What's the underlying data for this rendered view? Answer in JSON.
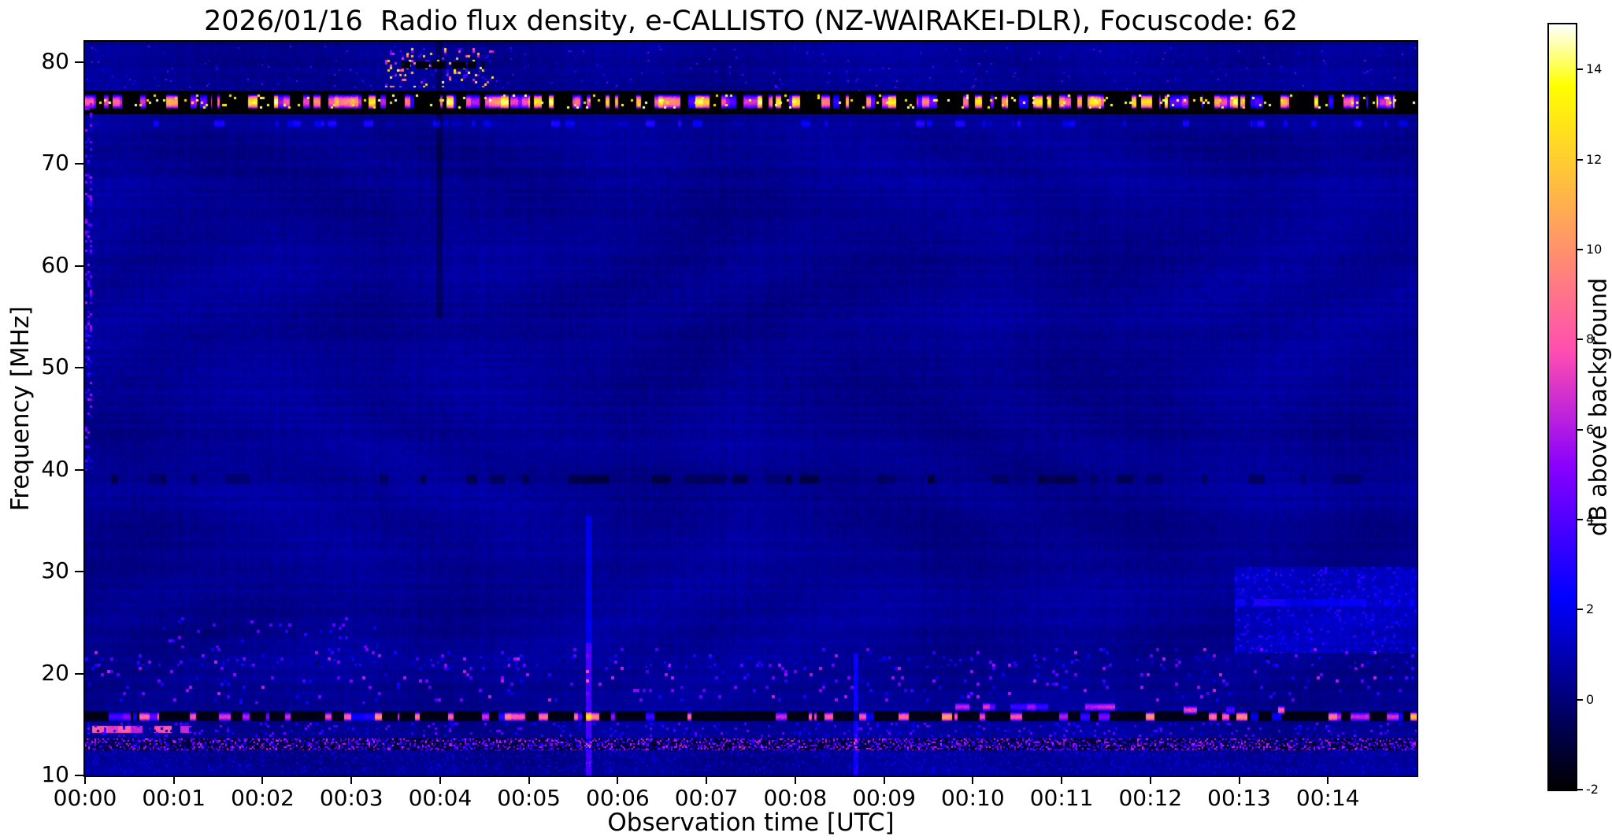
{
  "figure": {
    "title": "2026/01/16  Radio flux density, e-CALLISTO (NZ-WAIRAKEI-DLR), Focuscode: 62"
  },
  "chart_data": {
    "type": "heatmap",
    "title": "2026/01/16  Radio flux density, e-CALLISTO (NZ-WAIRAKEI-DLR), Focuscode: 62",
    "xlabel": "Observation time [UTC]",
    "ylabel": "Frequency [MHz]",
    "grid": false,
    "x_tick_labels": [
      "00:00",
      "00:01",
      "00:02",
      "00:03",
      "00:04",
      "00:05",
      "00:06",
      "00:07",
      "00:08",
      "00:09",
      "00:10",
      "00:11",
      "00:12",
      "00:13",
      "00:14"
    ],
    "x_tick_minutes": [
      0,
      1,
      2,
      3,
      4,
      5,
      6,
      7,
      8,
      9,
      10,
      11,
      12,
      13,
      14
    ],
    "x_range_minutes": [
      0,
      15
    ],
    "y_tick_labels": [
      80,
      70,
      60,
      50,
      40,
      30,
      20,
      10
    ],
    "y_range_mhz": [
      10,
      82
    ],
    "colorbar": {
      "label": "dB above background",
      "ticks": [
        -2,
        0,
        2,
        4,
        6,
        8,
        10,
        12,
        14
      ],
      "range": [
        -2,
        15
      ],
      "colormap": "gnuplot2",
      "position": "right"
    },
    "heatmap": {
      "description": "dynamic radio spectrum, mostly faint dark-blue background with RFI bands",
      "channels": 200,
      "background": {
        "base": 0.45,
        "noise": 0.55,
        "row_stripe": 0.3,
        "col_stripe": 0.18,
        "mottle": 0.26
      },
      "features": [
        {
          "kind": "band",
          "f": [
            74.9,
            77.2
          ],
          "value": -2
        },
        {
          "kind": "segments",
          "f": [
            75.4,
            76.8
          ],
          "x": [
            0,
            15
          ],
          "density": 0.5,
          "value": [
            3,
            15
          ],
          "seg": [
            0.012,
            0.09
          ]
        },
        {
          "kind": "speckle",
          "f": [
            75.4,
            76.8
          ],
          "x": [
            0,
            15
          ],
          "density": 0.05,
          "value": [
            12,
            15
          ],
          "size": 3
        },
        {
          "kind": "segments",
          "f": [
            73.6,
            74.4
          ],
          "x": [
            0,
            15
          ],
          "density": 0.22,
          "value": [
            0.8,
            3.5
          ],
          "seg": [
            0.02,
            0.12
          ]
        },
        {
          "kind": "speckle",
          "f": [
            77.5,
            81.4
          ],
          "x": [
            3.35,
            4.6
          ],
          "density": 0.16,
          "value": [
            2,
            15
          ],
          "size": 3
        },
        {
          "kind": "segments",
          "f": [
            79.4,
            80.1
          ],
          "x": [
            3.5,
            4.5
          ],
          "density": 0.5,
          "value": [
            -2,
            -1.5
          ],
          "seg": [
            0.02,
            0.08
          ]
        },
        {
          "kind": "speckle",
          "f": [
            77.2,
            81.6
          ],
          "x": [
            0,
            15
          ],
          "density": 0.01,
          "value": [
            1.5,
            5
          ],
          "size": 2
        },
        {
          "kind": "add",
          "f": [
            55,
            82
          ],
          "x": [
            3.96,
            4.03
          ],
          "add": -0.9
        },
        {
          "kind": "segments",
          "f": [
            38.6,
            39.6
          ],
          "x": [
            0,
            15
          ],
          "density": 0.3,
          "value": [
            -1.1,
            0.1
          ],
          "seg": [
            0.04,
            0.25
          ]
        },
        {
          "kind": "speckle",
          "f": [
            17,
            22.5
          ],
          "x": [
            0,
            15
          ],
          "density": 0.04,
          "value": [
            1.5,
            6.5
          ],
          "size": 4
        },
        {
          "kind": "speckle",
          "f": [
            20.6,
            21.7
          ],
          "x": [
            0,
            15
          ],
          "density": 0.09,
          "value": [
            -1,
            3.5
          ],
          "size": 3
        },
        {
          "kind": "speckle",
          "f": [
            22.5,
            25.5
          ],
          "x": [
            0.8,
            3.3
          ],
          "density": 0.035,
          "value": [
            1.5,
            5
          ],
          "size": 4
        },
        {
          "kind": "band",
          "f": [
            15.3,
            16.3
          ],
          "value": -1.6
        },
        {
          "kind": "segments",
          "f": [
            15.35,
            16.25
          ],
          "x": [
            0,
            15
          ],
          "density": 0.28,
          "value": [
            2,
            12
          ],
          "seg": [
            0.02,
            0.16
          ]
        },
        {
          "kind": "segments",
          "f": [
            16.3,
            17.2
          ],
          "x": [
            9.8,
            11.6
          ],
          "density": 0.45,
          "value": [
            3.5,
            9
          ],
          "seg": [
            0.05,
            0.2
          ]
        },
        {
          "kind": "segments",
          "f": [
            16.0,
            16.9
          ],
          "x": [
            12.3,
            13.7
          ],
          "density": 0.45,
          "value": [
            3.5,
            9
          ],
          "seg": [
            0.05,
            0.2
          ]
        },
        {
          "kind": "segments",
          "f": [
            14.2,
            14.9
          ],
          "x": [
            0.08,
            1.2
          ],
          "density": 0.8,
          "value": [
            5.5,
            8.5
          ],
          "seg": [
            0.03,
            0.14
          ]
        },
        {
          "kind": "speckle",
          "f": [
            13.8,
            15.2
          ],
          "x": [
            0,
            15
          ],
          "density": 0.1,
          "value": [
            0.5,
            5
          ],
          "size": 3
        },
        {
          "kind": "band",
          "f": [
            12.5,
            13.6
          ],
          "value": -1.1
        },
        {
          "kind": "speckle",
          "f": [
            12.5,
            13.6
          ],
          "x": [
            0,
            15
          ],
          "density": 0.5,
          "value": [
            -0.6,
            7
          ],
          "size": 2
        },
        {
          "kind": "speckle",
          "f": [
            10.2,
            12.4
          ],
          "x": [
            0,
            15
          ],
          "density": 0.16,
          "value": [
            0.2,
            2.6
          ],
          "size": 2
        },
        {
          "kind": "add",
          "f": [
            10,
            23
          ],
          "x": [
            5.64,
            5.7
          ],
          "add": 3.2
        },
        {
          "kind": "add",
          "f": [
            23,
            35.5
          ],
          "x": [
            5.64,
            5.7
          ],
          "add": 1.4
        },
        {
          "kind": "add",
          "f": [
            10,
            22
          ],
          "x": [
            8.66,
            8.71
          ],
          "add": 2.0
        },
        {
          "kind": "add",
          "f": [
            22,
            30.5
          ],
          "x": [
            12.95,
            15
          ],
          "add": 0.85
        },
        {
          "kind": "speckle",
          "f": [
            22,
            30.5
          ],
          "x": [
            12.95,
            15
          ],
          "density": 0.12,
          "value": [
            1.6,
            3.4
          ],
          "size": 3
        },
        {
          "kind": "segments",
          "f": [
            26.6,
            27.3
          ],
          "x": [
            12.95,
            15
          ],
          "density": 0.45,
          "value": [
            1.6,
            3
          ],
          "seg": [
            0.05,
            0.2
          ]
        },
        {
          "kind": "speckle",
          "f": [
            40,
            76
          ],
          "x": [
            0,
            0.08
          ],
          "density": 0.25,
          "value": [
            2,
            6
          ],
          "size": 3
        }
      ]
    }
  }
}
